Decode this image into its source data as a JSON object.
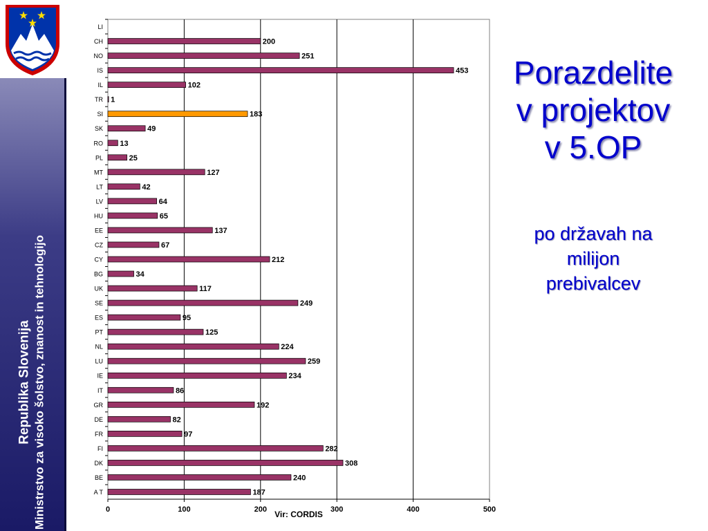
{
  "sidebar": {
    "line1": "Republika Slovenija",
    "line2": "Ministrstvo za visoko šolstvo, znanost in tehnologijo"
  },
  "title_lines": [
    "Porazdelite",
    "v projektov",
    "v 5.OP"
  ],
  "subtitle_lines": [
    "po državah na",
    "milijon",
    "prebivalcev"
  ],
  "colors": {
    "bar": "#993366",
    "highlight_bar": "#ff9900",
    "title": "#0000cc",
    "sidebar_blue": "#1a1a66"
  },
  "icons": [
    "coat-of-arms-icon"
  ],
  "chart_data": {
    "type": "bar",
    "orientation": "horizontal",
    "categories": [
      "LI",
      "CH",
      "NO",
      "IS",
      "IL",
      "TR",
      "SI",
      "SK",
      "RO",
      "PL",
      "MT",
      "LT",
      "LV",
      "HU",
      "EE",
      "CZ",
      "CY",
      "BG",
      "UK",
      "SE",
      "ES",
      "PT",
      "NL",
      "LU",
      "IE",
      "IT",
      "GR",
      "DE",
      "FR",
      "FI",
      "DK",
      "BE",
      "A T"
    ],
    "values": [
      null,
      200,
      251,
      453,
      102,
      1,
      183,
      49,
      13,
      25,
      127,
      42,
      64,
      65,
      137,
      67,
      212,
      34,
      117,
      249,
      95,
      125,
      224,
      259,
      234,
      86,
      192,
      82,
      97,
      282,
      308,
      240,
      187
    ],
    "value_labels": [
      "",
      "200",
      "251",
      "453",
      "102",
      "1",
      "183",
      "49",
      "13",
      "25",
      "127",
      "42",
      "64",
      "65",
      "137",
      "67",
      "212",
      "34",
      "117",
      "249",
      "95",
      "125",
      "224",
      "259",
      "234",
      "86",
      "192",
      "82",
      "97",
      "282",
      "308",
      "240",
      "187"
    ],
    "highlight": "SI",
    "xlim": [
      0,
      500
    ],
    "xticks": [
      "0",
      "100",
      "200",
      "300",
      "400",
      "500"
    ],
    "xlabel": "Vir: CORDIS",
    "grid": "vertical"
  }
}
